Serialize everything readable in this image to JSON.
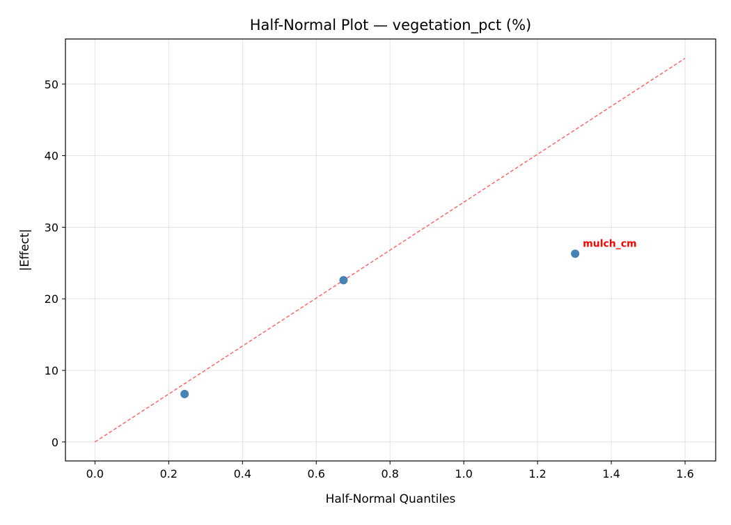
{
  "chart_data": {
    "type": "scatter",
    "title": "Half-Normal Plot — vegetation_pct (%)",
    "xlabel": "Half-Normal Quantiles",
    "ylabel": "|Effect|",
    "xlim": [
      -0.08,
      1.683
    ],
    "ylim": [
      -2.65,
      56.3
    ],
    "xticks": [
      0.0,
      0.2,
      0.4,
      0.6,
      0.8,
      1.0,
      1.2,
      1.4,
      1.6
    ],
    "xtick_labels": [
      "0.0",
      "0.2",
      "0.4",
      "0.6",
      "0.8",
      "1.0",
      "1.2",
      "1.4",
      "1.6"
    ],
    "yticks": [
      0,
      10,
      20,
      30,
      40,
      50
    ],
    "ytick_labels": [
      "0",
      "10",
      "20",
      "30",
      "40",
      "50"
    ],
    "grid": true,
    "points": [
      {
        "x": 0.243,
        "y": 6.7,
        "label": ""
      },
      {
        "x": 0.674,
        "y": 22.6,
        "label": ""
      },
      {
        "x": 1.302,
        "y": 26.3,
        "label": "mulch_cm"
      }
    ],
    "reference_line": {
      "x": [
        0,
        1.6
      ],
      "y": [
        0,
        53.6
      ],
      "style": "dashed"
    },
    "colors": {
      "points": "#4682b4",
      "reference_line": "#ff6666",
      "annotation": "#ff0000"
    }
  }
}
